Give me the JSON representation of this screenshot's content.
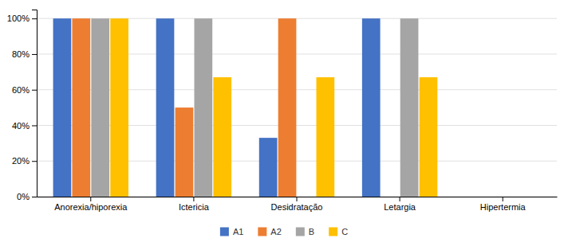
{
  "chart_data": {
    "type": "bar",
    "categories": [
      "Anorexia/hiporexia",
      "Ictericia",
      "Desidratação",
      "Letargia",
      "Hipertermia"
    ],
    "series": [
      {
        "name": "A1",
        "color": "#4472C4",
        "values": [
          100,
          100,
          33,
          100,
          0
        ]
      },
      {
        "name": "A2",
        "color": "#ED7D31",
        "values": [
          100,
          50,
          100,
          0,
          0
        ]
      },
      {
        "name": "B",
        "color": "#A5A5A5",
        "values": [
          100,
          100,
          0,
          100,
          0
        ]
      },
      {
        "name": "C",
        "color": "#FFC000",
        "values": [
          100,
          67,
          67,
          67,
          0
        ]
      }
    ],
    "ylim": [
      0,
      105
    ],
    "yticks": [
      {
        "value": 0,
        "label": "0%"
      },
      {
        "value": 20,
        "label": "20%"
      },
      {
        "value": 40,
        "label": "40%"
      },
      {
        "value": 60,
        "label": "60%"
      },
      {
        "value": 80,
        "label": "80%"
      },
      {
        "value": 100,
        "label": "100%"
      }
    ],
    "grid": true,
    "legend": "bottom"
  }
}
